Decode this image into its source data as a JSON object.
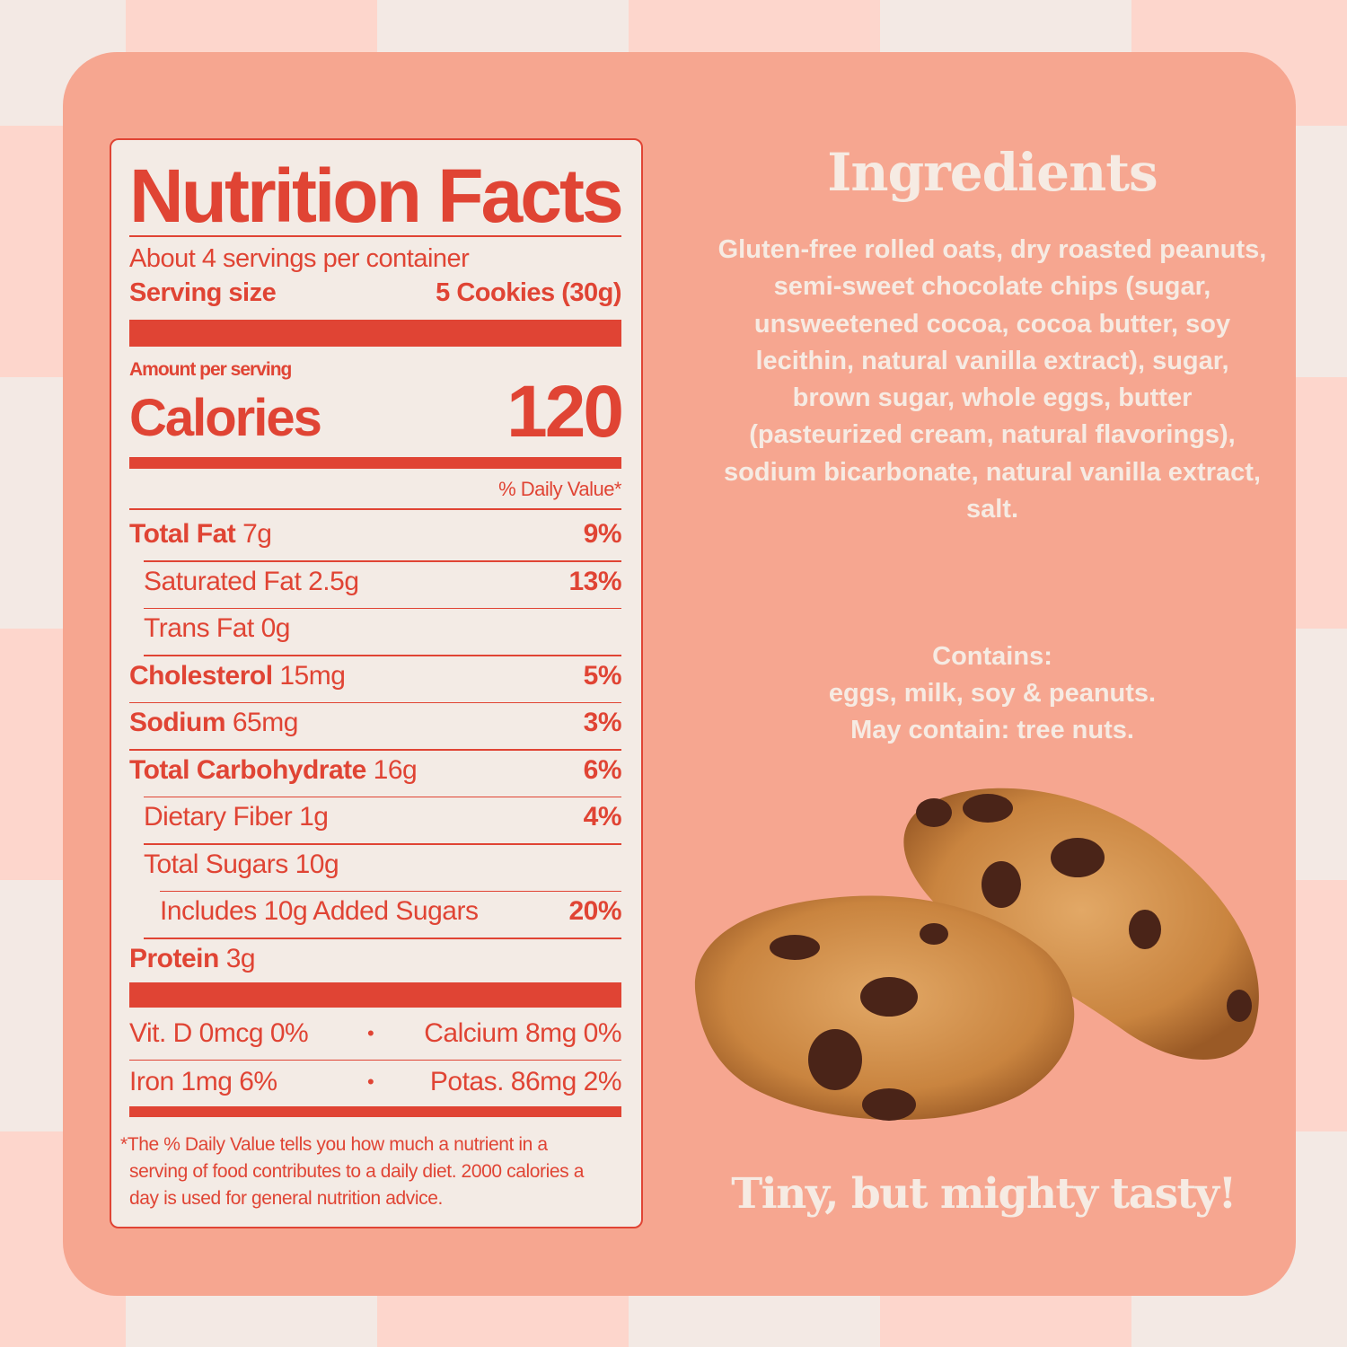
{
  "nutrition": {
    "title": "Nutrition Facts",
    "servings": "About 4 servings per container",
    "serving_size_label": "Serving size",
    "serving_size_value": "5 Cookies (30g)",
    "amount_per_serving": "Amount per serving",
    "calories_label": "Calories",
    "calories_value": "120",
    "dv_header": "% Daily Value*",
    "rows": [
      {
        "name": "Total Fat",
        "amount": "7g",
        "dv": "9%",
        "bold": true,
        "indent": 0
      },
      {
        "name": "Saturated Fat",
        "amount": "2.5g",
        "dv": "13%",
        "bold": false,
        "indent": 1
      },
      {
        "name": "Trans Fat",
        "amount": "0g",
        "dv": "",
        "bold": false,
        "indent": 1
      },
      {
        "name": "Cholesterol",
        "amount": "15mg",
        "dv": "5%",
        "bold": true,
        "indent": 0
      },
      {
        "name": "Sodium",
        "amount": "65mg",
        "dv": "3%",
        "bold": true,
        "indent": 0
      },
      {
        "name": "Total Carbohydrate",
        "amount": "16g",
        "dv": "6%",
        "bold": true,
        "indent": 0
      },
      {
        "name": "Dietary Fiber",
        "amount": "1g",
        "dv": "4%",
        "bold": false,
        "indent": 1
      },
      {
        "name": "Total Sugars",
        "amount": "10g",
        "dv": "",
        "bold": false,
        "indent": 1
      },
      {
        "name": "Includes 10g Added Sugars",
        "amount": "",
        "dv": "20%",
        "bold": false,
        "indent": 2
      },
      {
        "name": "Protein",
        "amount": "3g",
        "dv": "",
        "bold": true,
        "indent": 0
      }
    ],
    "vitamins": {
      "vit_d": "Vit. D 0mcg 0%",
      "calcium": "Calcium 8mg 0%",
      "iron": "Iron 1mg 6%",
      "potassium": "Potas. 86mg 2%",
      "bullet": "•"
    },
    "footnote": "*The % Daily Value tells you how much a nutrient in a serving of food contributes to a daily diet. 2000 calories a day is used for general nutrition advice."
  },
  "ingredients": {
    "title": "Ingredients",
    "text": "Gluten-free rolled oats, dry roasted peanuts, semi-sweet chocolate chips (sugar, unsweetened cocoa, cocoa butter, soy lecithin,  natural vanilla extract), sugar, brown sugar, whole eggs, butter (pasteurized cream, natural flavorings), sodium bicarbonate, natural vanilla extract, salt.",
    "contains_label": "Contains:",
    "contains": "eggs, milk, soy & peanuts.",
    "may_contain": "May contain: tree nuts."
  },
  "tagline": "Tiny, but mighty tasty!",
  "colors": {
    "label_red": "#e04434",
    "card": "#f6a690",
    "cream": "#f3ebe5"
  }
}
